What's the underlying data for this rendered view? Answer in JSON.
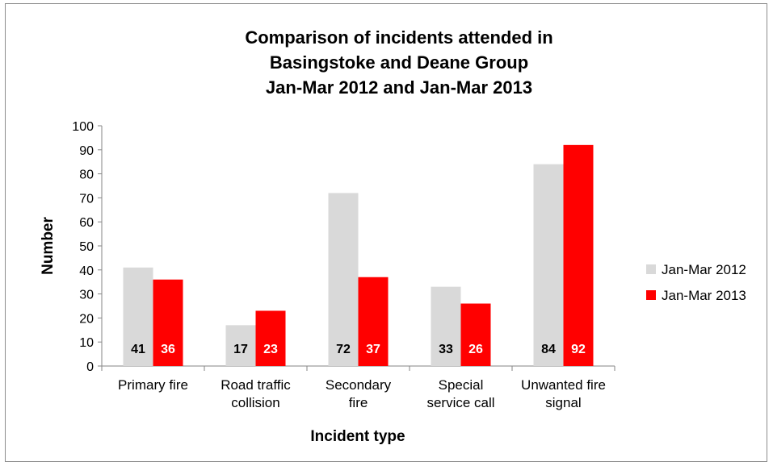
{
  "chart_data": {
    "type": "bar",
    "title": [
      "Comparison of incidents attended in",
      "Basingstoke and Deane Group",
      "Jan-Mar 2012 and Jan-Mar 2013"
    ],
    "xlabel": "Incident type",
    "ylabel": "Number",
    "ylim": [
      0,
      100
    ],
    "yticks": [
      0,
      10,
      20,
      30,
      40,
      50,
      60,
      70,
      80,
      90,
      100
    ],
    "categories": [
      [
        "Primary fire"
      ],
      [
        "Road traffic",
        "collision"
      ],
      [
        "Secondary",
        "fire"
      ],
      [
        "Special",
        "service call"
      ],
      [
        "Unwanted fire",
        "signal"
      ]
    ],
    "series": [
      {
        "name": "Jan-Mar 2012",
        "color": "#d9d9d9",
        "label_color": "#000000",
        "values": [
          41,
          17,
          72,
          33,
          84
        ]
      },
      {
        "name": "Jan-Mar 2013",
        "color": "#ff0000",
        "label_color": "#ffffff",
        "values": [
          36,
          23,
          37,
          26,
          92
        ]
      }
    ],
    "grid": false,
    "legend_position": "right"
  }
}
